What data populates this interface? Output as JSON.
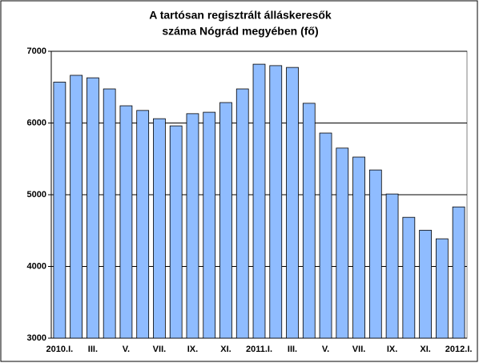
{
  "chart_data": {
    "type": "bar",
    "title": [
      "A tartósan regisztrált álláskeresők",
      "száma Nógrád megyében (fő)"
    ],
    "categories": [
      "2010.I.",
      null,
      "III.",
      null,
      "V.",
      null,
      "VII.",
      null,
      "IX.",
      null,
      "XI.",
      null,
      "2011.I.",
      null,
      "III.",
      null,
      "V.",
      null,
      "VII.",
      null,
      "IX.",
      null,
      "XI.",
      null,
      "2012.I."
    ],
    "values": [
      6570,
      6665,
      6630,
      6475,
      6240,
      6175,
      6060,
      5960,
      6130,
      6150,
      6285,
      6475,
      6820,
      6800,
      6775,
      6275,
      5860,
      5650,
      5525,
      5345,
      5010,
      4685,
      4505,
      4385,
      4830
    ],
    "color": "#8fbcff",
    "ylim": [
      3000,
      7000
    ],
    "yticks": [
      3000,
      4000,
      5000,
      6000,
      7000
    ],
    "grid": true
  }
}
